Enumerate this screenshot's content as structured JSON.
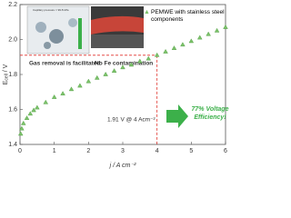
{
  "chart_data": {
    "type": "scatter",
    "ylabel": "E",
    "ylabel_sub": "cell",
    "ylabel_unit": " / V",
    "xlabel": "j / A cm⁻²",
    "series": [
      {
        "name": "PEMWE with stainless steel components",
        "color": "#7cc26a",
        "x": [
          0.02,
          0.05,
          0.1,
          0.2,
          0.3,
          0.4,
          0.5,
          0.75,
          1,
          1.25,
          1.5,
          1.75,
          2,
          2.25,
          2.5,
          2.75,
          3,
          3.25,
          3.5,
          3.75,
          4,
          4.25,
          4.5,
          4.75,
          5,
          5.25,
          5.5,
          5.75,
          6
        ],
        "values": [
          1.46,
          1.49,
          1.52,
          1.55,
          1.575,
          1.595,
          1.61,
          1.64,
          1.67,
          1.69,
          1.715,
          1.735,
          1.76,
          1.78,
          1.8,
          1.82,
          1.84,
          1.855,
          1.875,
          1.89,
          1.91,
          1.93,
          1.95,
          1.97,
          1.99,
          2.01,
          2.03,
          2.05,
          2.07
        ]
      }
    ],
    "xlim": [
      0,
      6
    ],
    "xticks": [
      0,
      1,
      2,
      3,
      4,
      5,
      6
    ],
    "ylim": [
      1.4,
      2.2
    ],
    "yticks": [
      1.4,
      1.6,
      1.8,
      {
        "value": 2.0,
        "label": "2.0"
      },
      2.2
    ],
    "reference": {
      "x": 4,
      "y": 1.91,
      "color": "#e0312b"
    },
    "annotation": "1.91 V @ 4 Acm⁻²",
    "efficiency_text": "77% Voltage Efficiency!",
    "inset_left_caption": "Gas removal is facilitated",
    "inset_left_note": "Capillary pressure = 99.8 kPa",
    "inset_right_caption": "No Fe contamination"
  }
}
